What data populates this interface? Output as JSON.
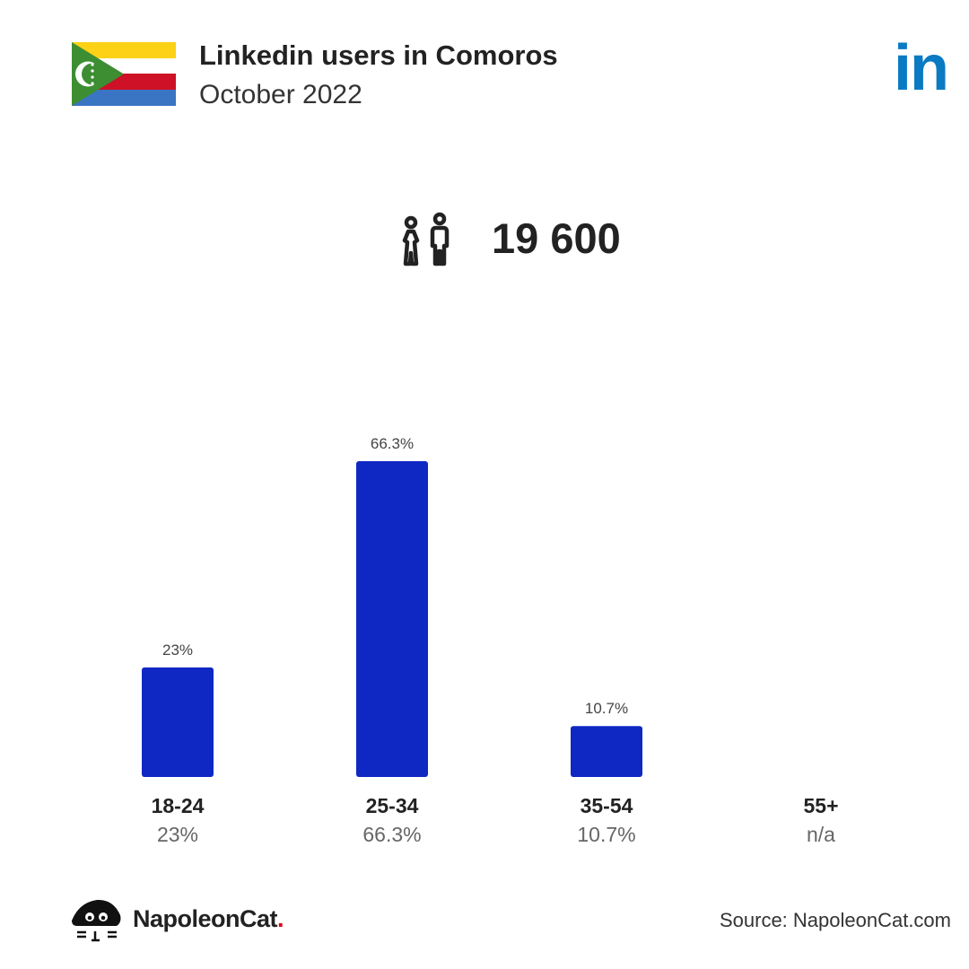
{
  "header": {
    "title": "Linkedin users in Comoros",
    "subtitle": "October 2022",
    "logo_text": "in",
    "flag_icon": "comoros-flag",
    "brand_icon": "linkedin-logo"
  },
  "summary": {
    "icon": "people-icon",
    "total_users": "19 600"
  },
  "chart_data": {
    "type": "bar",
    "categories": [
      "18-24",
      "25-34",
      "35-54",
      "55+"
    ],
    "values": [
      23,
      66.3,
      10.7,
      null
    ],
    "value_labels": [
      "23%",
      "66.3%",
      "10.7%",
      ""
    ],
    "category_values": [
      "23%",
      "66.3%",
      "10.7%",
      "n/a"
    ],
    "ylim": [
      0,
      66.3
    ],
    "colors": {
      "bar": "#0f28c3"
    },
    "grid": false,
    "legend": "none"
  },
  "footer": {
    "brand_name": "NapoleonCat",
    "brand_dot": ".",
    "brand_icon": "napoleoncat-logo",
    "source": "Source: NapoleonCat.com"
  },
  "colors": {
    "linkedin_blue": "#0a7ac2",
    "bar_blue": "#0f28c3",
    "text_dark": "#222222",
    "text_muted": "#555555",
    "napoleoncat_red": "#e2001a"
  }
}
